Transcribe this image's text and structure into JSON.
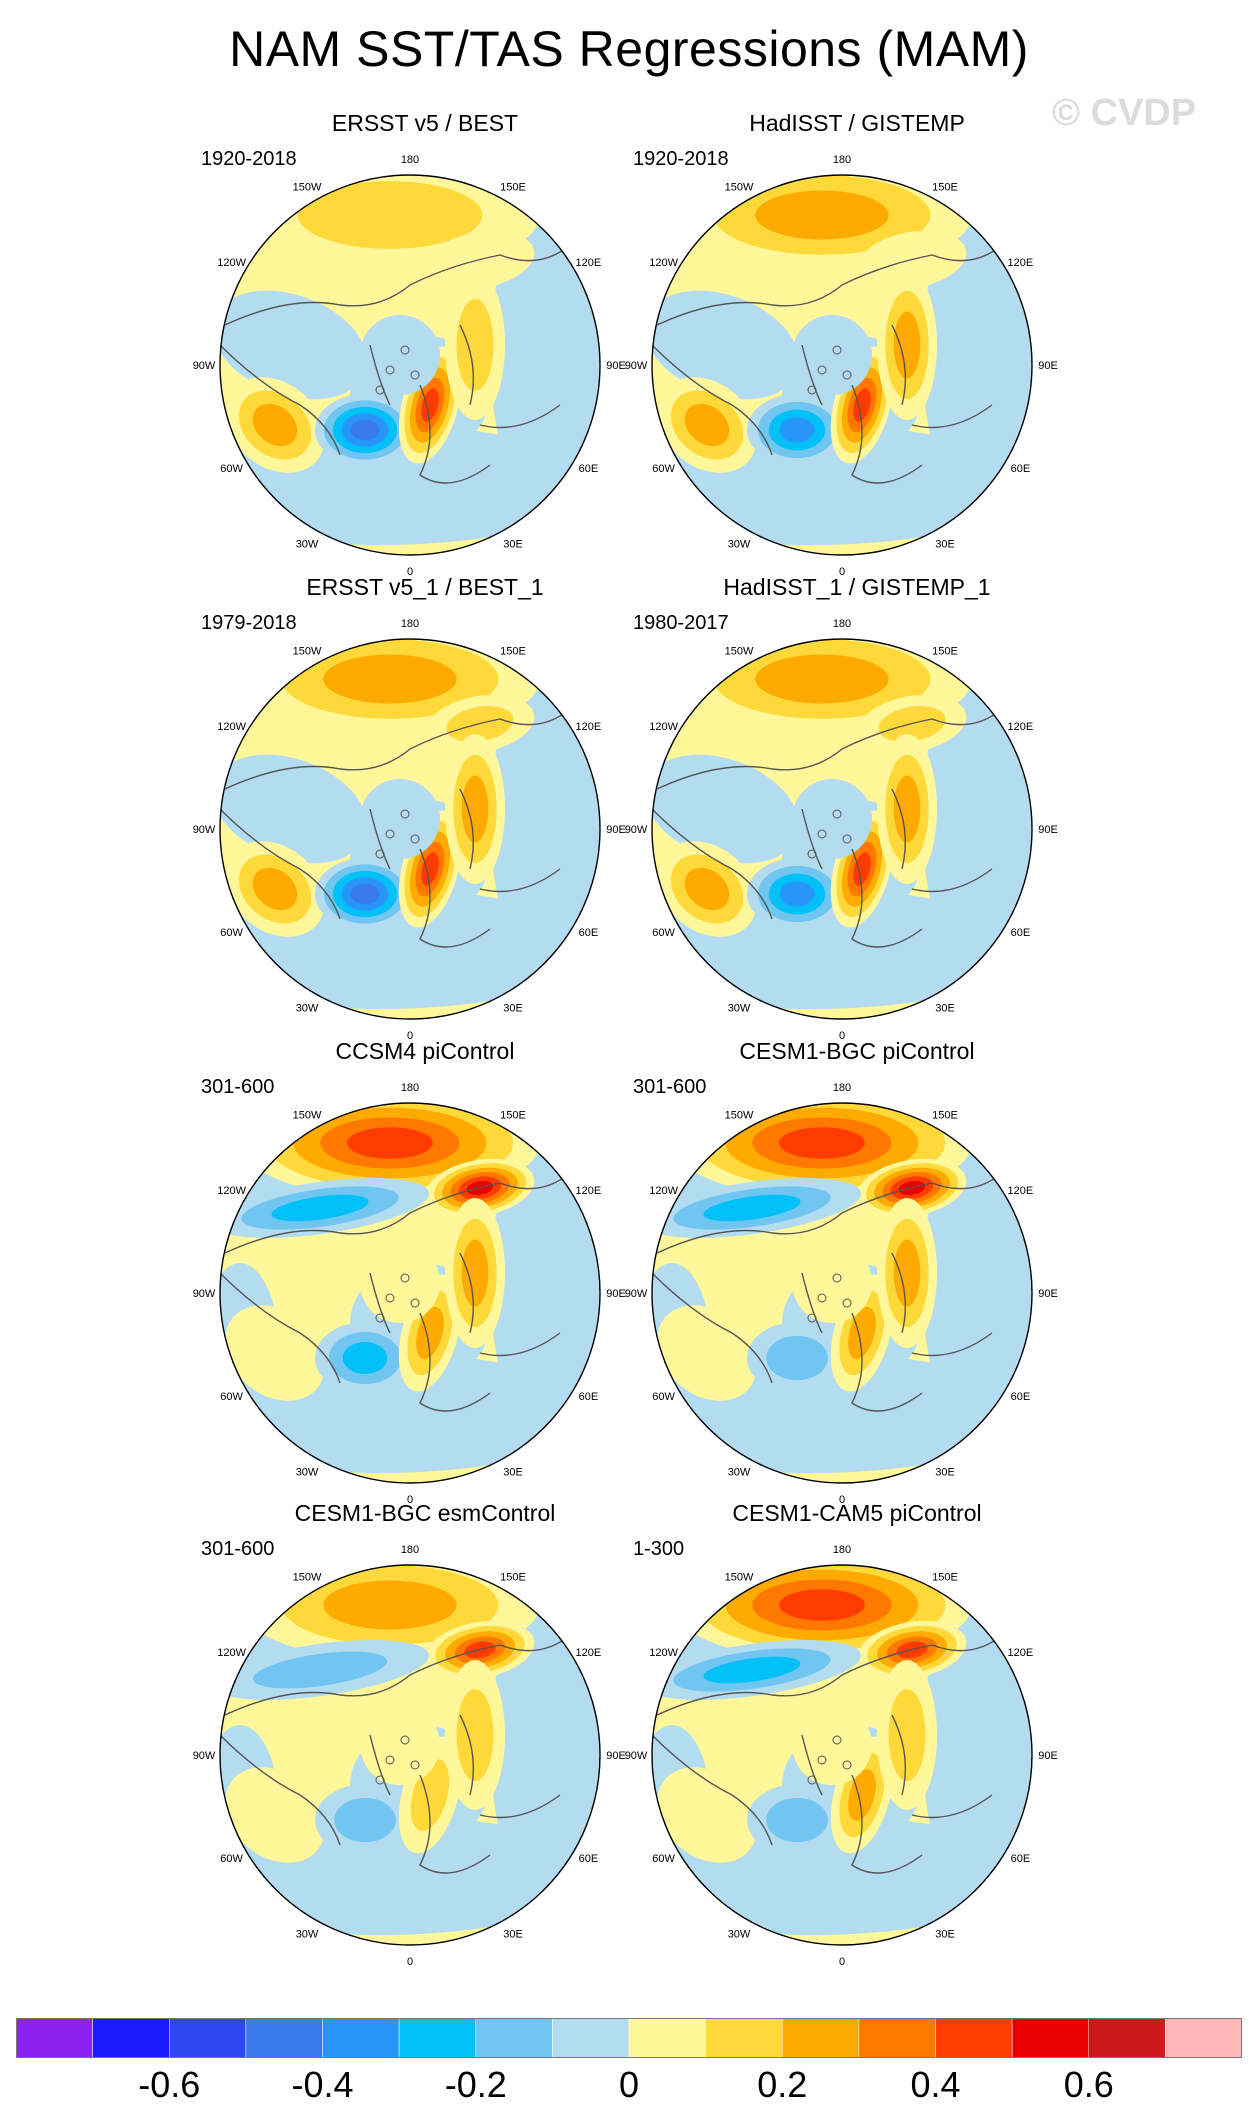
{
  "title": "NAM SST/TAS Regressions (MAM)",
  "watermark": "© CVDP",
  "chart_data": {
    "type": "heatmap",
    "projection": "north-polar-stereographic",
    "lon_labels": [
      "180",
      "150E",
      "120E",
      "90E",
      "60E",
      "30E",
      "0",
      "30W",
      "60W",
      "90W",
      "120W",
      "150W"
    ],
    "panels": [
      {
        "title": "ERSST v5 / BEST",
        "years": "1920-2018",
        "pattern": "obs",
        "features": {
          "pac": 0.2,
          "ber": 0.15,
          "atl_sw": 0.3,
          "atl_ne": -0.45,
          "eur": 0.5,
          "arc": -0.15,
          "asia_nw": 0.2
        }
      },
      {
        "title": "HadISST / GISTEMP",
        "years": "1920-2018",
        "pattern": "obs",
        "features": {
          "pac": 0.3,
          "ber": 0.1,
          "atl_sw": 0.25,
          "atl_ne": -0.4,
          "eur": 0.45,
          "arc": -0.15,
          "asia_nw": 0.25
        }
      },
      {
        "title": "ERSST v5_1 / BEST_1",
        "years": "1979-2018",
        "pattern": "obs",
        "features": {
          "pac": 0.3,
          "ber": 0.2,
          "atl_sw": 0.35,
          "atl_ne": -0.5,
          "eur": 0.5,
          "arc": -0.1,
          "asia_nw": 0.25
        }
      },
      {
        "title": "HadISST_1 / GISTEMP_1",
        "years": "1980-2017",
        "pattern": "obs",
        "features": {
          "pac": 0.25,
          "ber": 0.2,
          "atl_sw": 0.3,
          "atl_ne": -0.4,
          "eur": 0.45,
          "arc": -0.1,
          "asia_nw": 0.25
        }
      },
      {
        "title": "CCSM4 piControl",
        "years": "301-600",
        "pattern": "model",
        "features": {
          "pac": 0.45,
          "ber": 0.55,
          "can_w": -0.3,
          "atl_sw": 0.15,
          "atl_ne": -0.25,
          "eur": 0.25,
          "arc": 0.1,
          "asia_nw": 0.25
        }
      },
      {
        "title": "CESM1-BGC piControl",
        "years": "301-600",
        "pattern": "model",
        "features": {
          "pac": 0.45,
          "ber": 0.55,
          "can_w": -0.3,
          "atl_sw": 0.15,
          "atl_ne": -0.2,
          "eur": 0.25,
          "arc": 0.1,
          "asia_nw": 0.25
        }
      },
      {
        "title": "CESM1-BGC esmControl",
        "years": "301-600",
        "pattern": "model",
        "features": {
          "pac": 0.35,
          "ber": 0.45,
          "can_w": -0.2,
          "atl_sw": 0.12,
          "atl_ne": -0.2,
          "eur": 0.2,
          "arc": 0.1,
          "asia_nw": 0.2
        }
      },
      {
        "title": "CESM1-CAM5 piControl",
        "years": "1-300",
        "pattern": "model",
        "features": {
          "pac": 0.45,
          "ber": 0.5,
          "can_w": -0.3,
          "atl_sw": 0.12,
          "atl_ne": -0.2,
          "eur": 0.3,
          "arc": 0.1,
          "asia_nw": 0.2
        }
      }
    ],
    "colorbar": {
      "levels": [
        -0.7,
        -0.6,
        -0.5,
        -0.4,
        -0.3,
        -0.2,
        -0.1,
        0,
        0.1,
        0.2,
        0.3,
        0.4,
        0.5,
        0.6,
        0.7
      ],
      "colors": [
        "#8b22ee",
        "#1a1aff",
        "#2e47ee",
        "#3a78ee",
        "#2896f8",
        "#00c0f8",
        "#70c6f0",
        "#b4dcf0",
        "#fff79a",
        "#ffd93a",
        "#ffaa00",
        "#ff7800",
        "#ff3b00",
        "#e60000",
        "#cc1a1a",
        "#ffb6b6"
      ],
      "tick_labels": [
        "-0.6",
        "-0.4",
        "-0.2",
        "0",
        "0.2",
        "0.4",
        "0.6"
      ],
      "tick_values": [
        -0.6,
        -0.4,
        -0.2,
        0,
        0.2,
        0.4,
        0.6
      ]
    }
  }
}
